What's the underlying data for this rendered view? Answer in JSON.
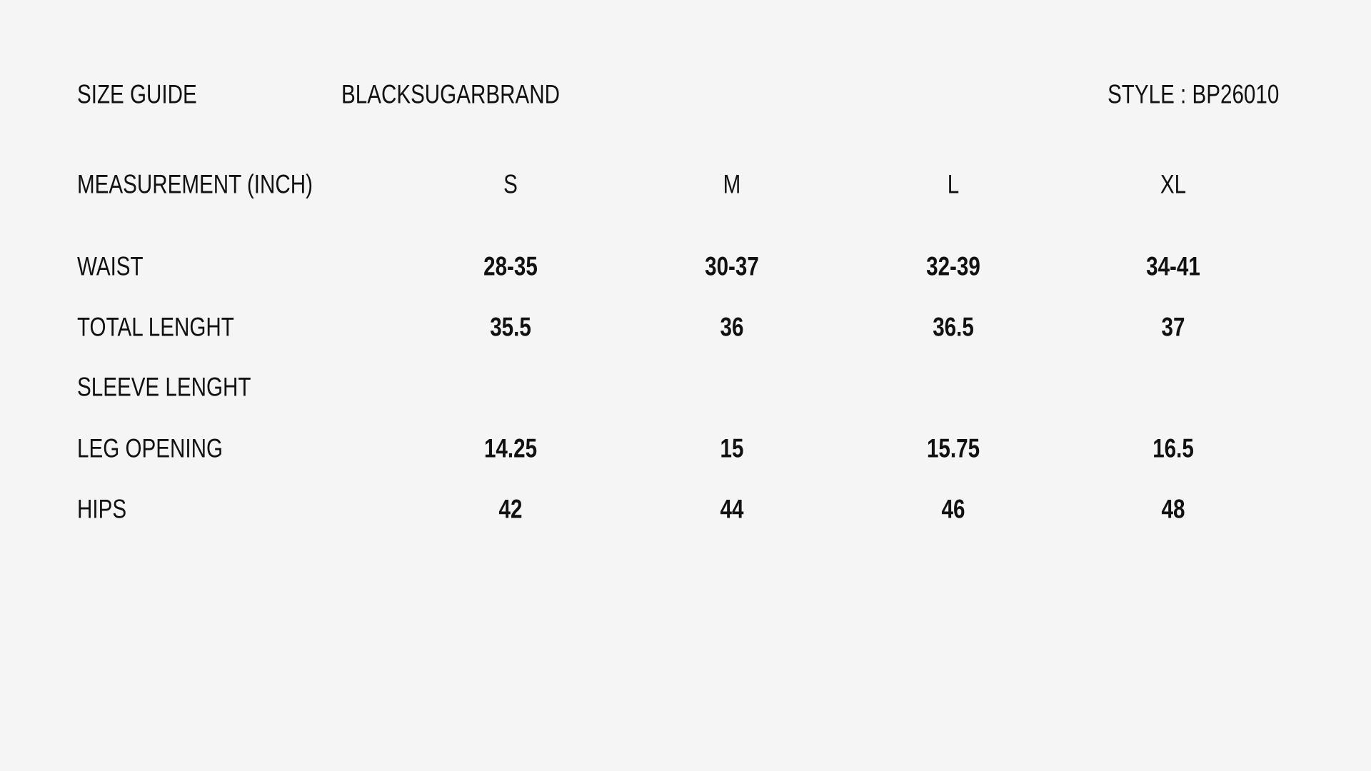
{
  "header": {
    "title": "SIZE GUIDE",
    "brand": "BLACKSUGARBRAND",
    "style": "STYLE : BP26010"
  },
  "table": {
    "measurement_label": "MEASUREMENT (INCH)",
    "sizes": [
      "S",
      "M",
      "L",
      "XL"
    ],
    "rows": [
      {
        "label": "WAIST",
        "values": [
          "28-35",
          "30-37",
          "32-39",
          "34-41"
        ]
      },
      {
        "label": "TOTAL LENGHT",
        "values": [
          "35.5",
          "36",
          "36.5",
          "37"
        ]
      },
      {
        "label": "SLEEVE LENGHT",
        "values": [
          "",
          "",
          "",
          ""
        ]
      },
      {
        "label": "LEG OPENING",
        "values": [
          "14.25",
          "15",
          "15.75",
          "16.5"
        ]
      },
      {
        "label": "HIPS",
        "values": [
          "42",
          "44",
          "46",
          "48"
        ]
      }
    ]
  }
}
